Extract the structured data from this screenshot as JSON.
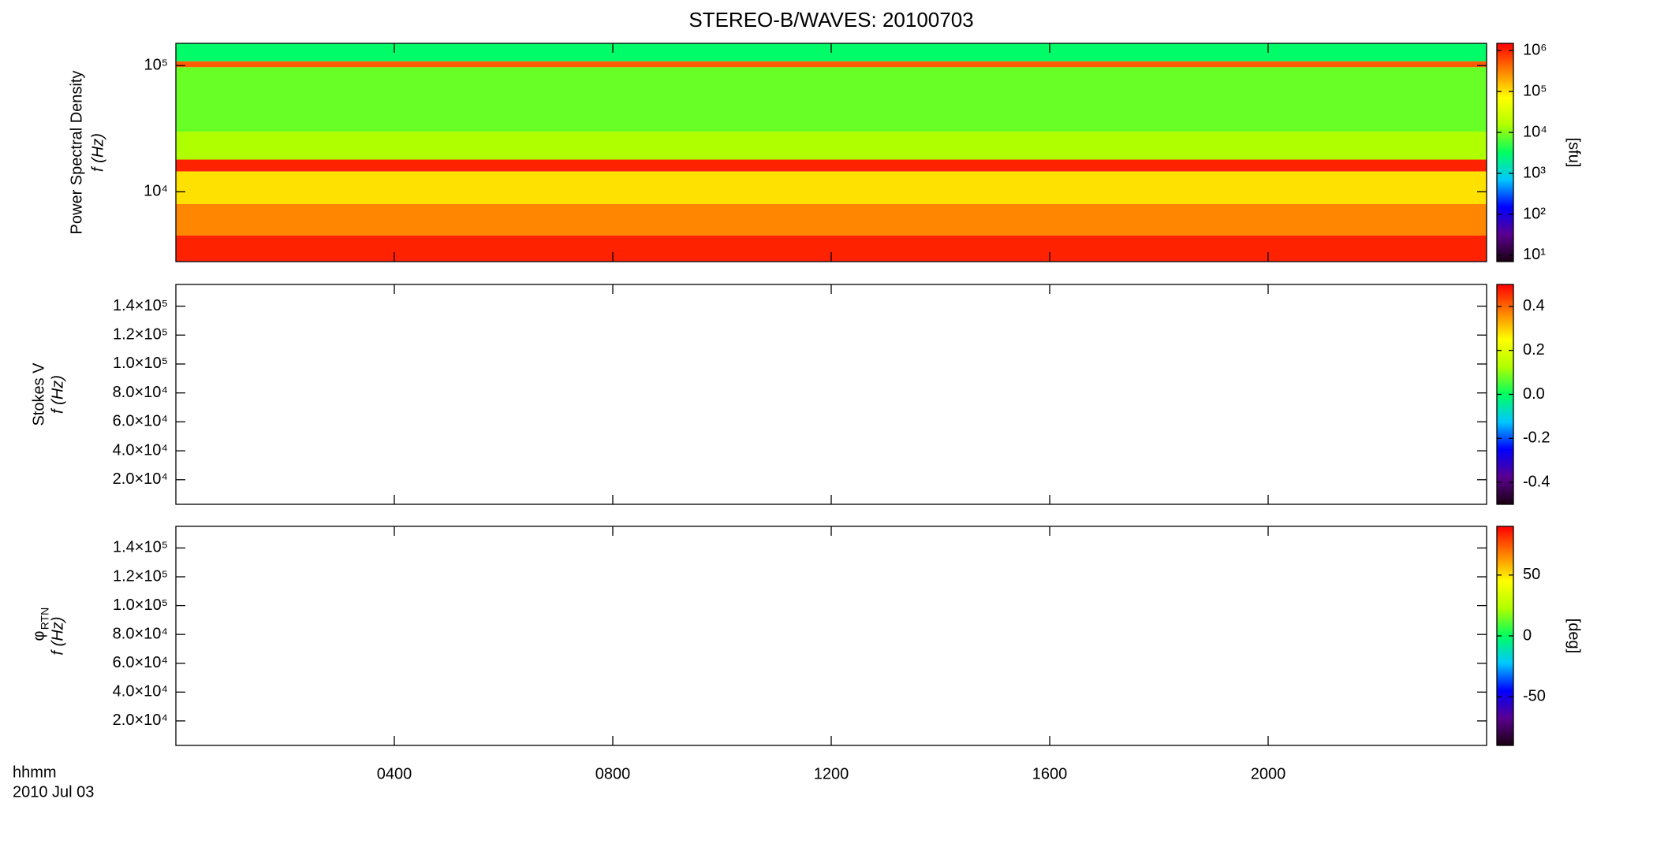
{
  "title": "STEREO-B/WAVES: 20100703",
  "x_axis": {
    "label": "hhmm",
    "date": "2010 Jul 03",
    "xlim": [
      0,
      24
    ],
    "xticks": [
      {
        "value": 4,
        "label": "0400"
      },
      {
        "value": 8,
        "label": "0800"
      },
      {
        "value": 12,
        "label": "1200"
      },
      {
        "value": 16,
        "label": "1600"
      },
      {
        "value": 20,
        "label": "2000"
      }
    ]
  },
  "colormap": [
    "#1a0010",
    "#5a0090",
    "#0000ff",
    "#00c8ff",
    "#00ff60",
    "#b0ff00",
    "#ffff00",
    "#ff8000",
    "#ff0000"
  ],
  "chart_data": [
    {
      "type": "spectrogram",
      "ylabel": "Power Spectral Density",
      "ylabel2": "f (Hz)",
      "log_y": true,
      "ylim": [
        2800,
        150000
      ],
      "yticks": [
        {
          "value": 10000,
          "label": "10⁴"
        },
        {
          "value": 100000,
          "label": "10⁵"
        }
      ],
      "freq_edges": [
        150000,
        108000,
        97000,
        30000,
        18000,
        14500,
        8000,
        4500,
        2800
      ],
      "levels": [
        3000,
        500000,
        8000,
        15000,
        1000000,
        100000,
        300000,
        1000000
      ],
      "colorbar": {
        "log": true,
        "clim": [
          7,
          1500000
        ],
        "label": "[sfu]",
        "ticks": [
          {
            "value": 10,
            "label": "10¹"
          },
          {
            "value": 100,
            "label": "10²"
          },
          {
            "value": 1000,
            "label": "10³"
          },
          {
            "value": 10000,
            "label": "10⁴"
          },
          {
            "value": 100000,
            "label": "10⁵"
          },
          {
            "value": 1000000,
            "label": "10⁶"
          }
        ]
      }
    },
    {
      "type": "spectrogram",
      "ylabel": "Stokes V",
      "ylabel2": "f (Hz)",
      "log_y": false,
      "ylim": [
        3000,
        155000
      ],
      "yticks": [
        {
          "value": 20000,
          "label": "2.0×10⁴"
        },
        {
          "value": 40000,
          "label": "4.0×10⁴"
        },
        {
          "value": 60000,
          "label": "6.0×10⁴"
        },
        {
          "value": 80000,
          "label": "8.0×10⁴"
        },
        {
          "value": 100000,
          "label": "1.0×10⁵"
        },
        {
          "value": 120000,
          "label": "1.2×10⁵"
        },
        {
          "value": 140000,
          "label": "1.4×10⁵"
        }
      ],
      "colorbar": {
        "log": false,
        "clim": [
          -0.5,
          0.5
        ],
        "ticks": [
          -0.4,
          -0.2,
          {
            "value": 0,
            "label": "0.0"
          },
          0.2,
          0.4
        ]
      }
    },
    {
      "type": "spectrogram",
      "ylabel": "φ",
      "ylabel_sub": "RTN",
      "ylabel2": "f (Hz)",
      "log_y": false,
      "ylim": [
        3000,
        155000
      ],
      "yticks": [
        {
          "value": 20000,
          "label": "2.0×10⁴"
        },
        {
          "value": 40000,
          "label": "4.0×10⁴"
        },
        {
          "value": 60000,
          "label": "6.0×10⁴"
        },
        {
          "value": 80000,
          "label": "8.0×10⁴"
        },
        {
          "value": 100000,
          "label": "1.0×10⁵"
        },
        {
          "value": 120000,
          "label": "1.2×10⁵"
        },
        {
          "value": 140000,
          "label": "1.4×10⁵"
        }
      ],
      "colorbar": {
        "log": false,
        "clim": [
          -90,
          90
        ],
        "label": "[deg]",
        "ticks": [
          -50,
          0,
          50
        ]
      }
    }
  ]
}
